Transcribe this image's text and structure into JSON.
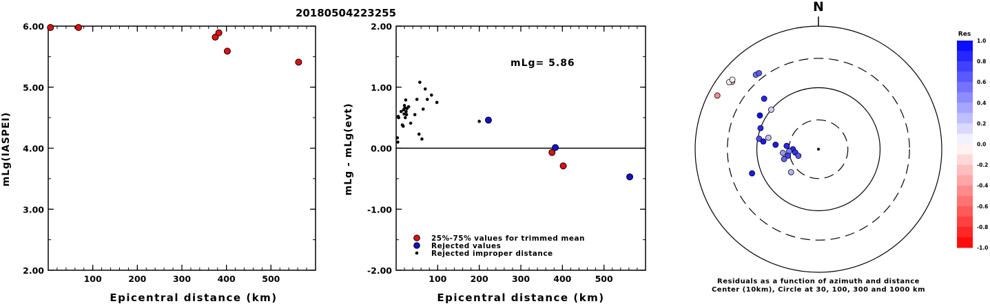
{
  "title": "20180504223255",
  "colors": {
    "red": "#e01010",
    "blue": "#1010d0",
    "black": "#000000"
  },
  "chart_data": [
    {
      "type": "scatter",
      "name": "magnitude-vs-distance",
      "xlabel": "Epicentral distance (km)",
      "ylabel": "mLg(IASPEI)",
      "xlim": [
        0,
        600
      ],
      "ylim": [
        2.0,
        6.0
      ],
      "xticks": [
        "100",
        "200",
        "300",
        "400",
        "500"
      ],
      "yticks": [
        "2.00",
        "3.00",
        "4.00",
        "5.00",
        "6.00"
      ],
      "points": [
        {
          "x": 5,
          "y": 5.99
        },
        {
          "x": 68,
          "y": 6.03
        },
        {
          "x": 375,
          "y": 5.82
        },
        {
          "x": 383,
          "y": 5.89
        },
        {
          "x": 402,
          "y": 5.59
        },
        {
          "x": 562,
          "y": 5.41
        }
      ]
    },
    {
      "type": "scatter",
      "name": "residual-vs-distance",
      "xlabel": "Epicentral distance (km)",
      "ylabel": "mLg - mLg(evt)",
      "xlim": [
        0,
        600
      ],
      "ylim": [
        -2.0,
        2.0
      ],
      "xticks": [
        "100",
        "200",
        "300",
        "400",
        "500"
      ],
      "yticks": [
        "-2.00",
        "-1.00",
        "0.00",
        "1.00",
        "2.00"
      ],
      "annotation": "mLg= 5.86",
      "legend": [
        {
          "label": "25%-75% values for trimmed mean",
          "kind": "trimmed"
        },
        {
          "label": "Rejected values",
          "kind": "rejected"
        },
        {
          "label": "Rejected improper distance",
          "kind": "improper"
        }
      ],
      "trimmed": [
        {
          "x": 375,
          "y": -0.07
        },
        {
          "x": 402,
          "y": -0.29
        }
      ],
      "rejected": [
        {
          "x": 222,
          "y": 0.46
        },
        {
          "x": 383,
          "y": 0.01
        },
        {
          "x": 562,
          "y": -0.47
        }
      ],
      "improper": [
        {
          "x": 3,
          "y": 0.17
        },
        {
          "x": 4,
          "y": 0.1
        },
        {
          "x": 5,
          "y": 0.52
        },
        {
          "x": 6,
          "y": 0.5
        },
        {
          "x": 12,
          "y": 0.6
        },
        {
          "x": 15,
          "y": 0.38
        },
        {
          "x": 17,
          "y": 0.36
        },
        {
          "x": 18,
          "y": 0.63
        },
        {
          "x": 19,
          "y": 0.56
        },
        {
          "x": 20,
          "y": 0.7
        },
        {
          "x": 21,
          "y": 0.66
        },
        {
          "x": 22,
          "y": 0.5
        },
        {
          "x": 23,
          "y": 0.79
        },
        {
          "x": 24,
          "y": 0.6
        },
        {
          "x": 25,
          "y": 0.55
        },
        {
          "x": 26,
          "y": 0.65
        },
        {
          "x": 30,
          "y": 0.68
        },
        {
          "x": 35,
          "y": 0.41
        },
        {
          "x": 45,
          "y": 0.55
        },
        {
          "x": 50,
          "y": 0.8
        },
        {
          "x": 55,
          "y": 0.23
        },
        {
          "x": 57,
          "y": 1.08
        },
        {
          "x": 62,
          "y": 0.15
        },
        {
          "x": 65,
          "y": 0.64
        },
        {
          "x": 70,
          "y": 0.97
        },
        {
          "x": 75,
          "y": 0.8
        },
        {
          "x": 85,
          "y": 0.87
        },
        {
          "x": 98,
          "y": 0.75
        },
        {
          "x": 200,
          "y": 0.44
        }
      ]
    },
    {
      "type": "polar-scatter",
      "name": "residual-azimuth-map",
      "north_label": "N",
      "caption_line1": "Residuals as a function of azimuth and distance",
      "caption_line2": "Center (10km), Circle at 30, 100, 300 and 1000 km",
      "rings_km": [
        30,
        100,
        300,
        1000
      ],
      "colorbar_title": "Res",
      "colorbar_ticks": [
        "1.0",
        "0.8",
        "0.6",
        "0.4",
        "0.2",
        "0.0",
        "-0.2",
        "-0.4",
        "-0.6",
        "-0.8",
        "-1.0"
      ],
      "stations": [
        {
          "az": 298,
          "dist": 720,
          "res": -0.45
        },
        {
          "az": 308,
          "dist": 600,
          "res": -0.35
        },
        {
          "az": 307,
          "dist": 650,
          "res": 0.05
        },
        {
          "az": 309,
          "dist": 625,
          "res": 0.05
        },
        {
          "az": 320,
          "dist": 380,
          "res": 0.55
        },
        {
          "az": 322,
          "dist": 370,
          "res": 0.65
        },
        {
          "az": 313,
          "dist": 160,
          "res": 0.85
        },
        {
          "az": 310,
          "dist": 100,
          "res": 0.2
        },
        {
          "az": 300,
          "dist": 125,
          "res": 0.95
        },
        {
          "az": 290,
          "dist": 100,
          "res": 0.85
        },
        {
          "az": 283,
          "dist": 68,
          "res": 0.25
        },
        {
          "az": 280,
          "dist": 95,
          "res": 0.7
        },
        {
          "az": 278,
          "dist": 80,
          "res": 0.9
        },
        {
          "az": 276,
          "dist": 50,
          "res": 0.9
        },
        {
          "az": 276,
          "dist": 33,
          "res": 0.85
        },
        {
          "az": 270,
          "dist": 26,
          "res": 0.85
        },
        {
          "az": 266,
          "dist": 30,
          "res": 0.5
        },
        {
          "az": 264,
          "dist": 38,
          "res": 0.4
        },
        {
          "az": 262,
          "dist": 24,
          "res": 0.8
        },
        {
          "az": 258,
          "dist": 32,
          "res": 0.75
        },
        {
          "az": 252,
          "dist": 22,
          "res": 0.65
        },
        {
          "az": 254,
          "dist": 38,
          "res": 0.6
        },
        {
          "az": 230,
          "dist": 38,
          "res": 0.3
        },
        {
          "az": 250,
          "dist": 140,
          "res": 0.9
        }
      ]
    }
  ]
}
